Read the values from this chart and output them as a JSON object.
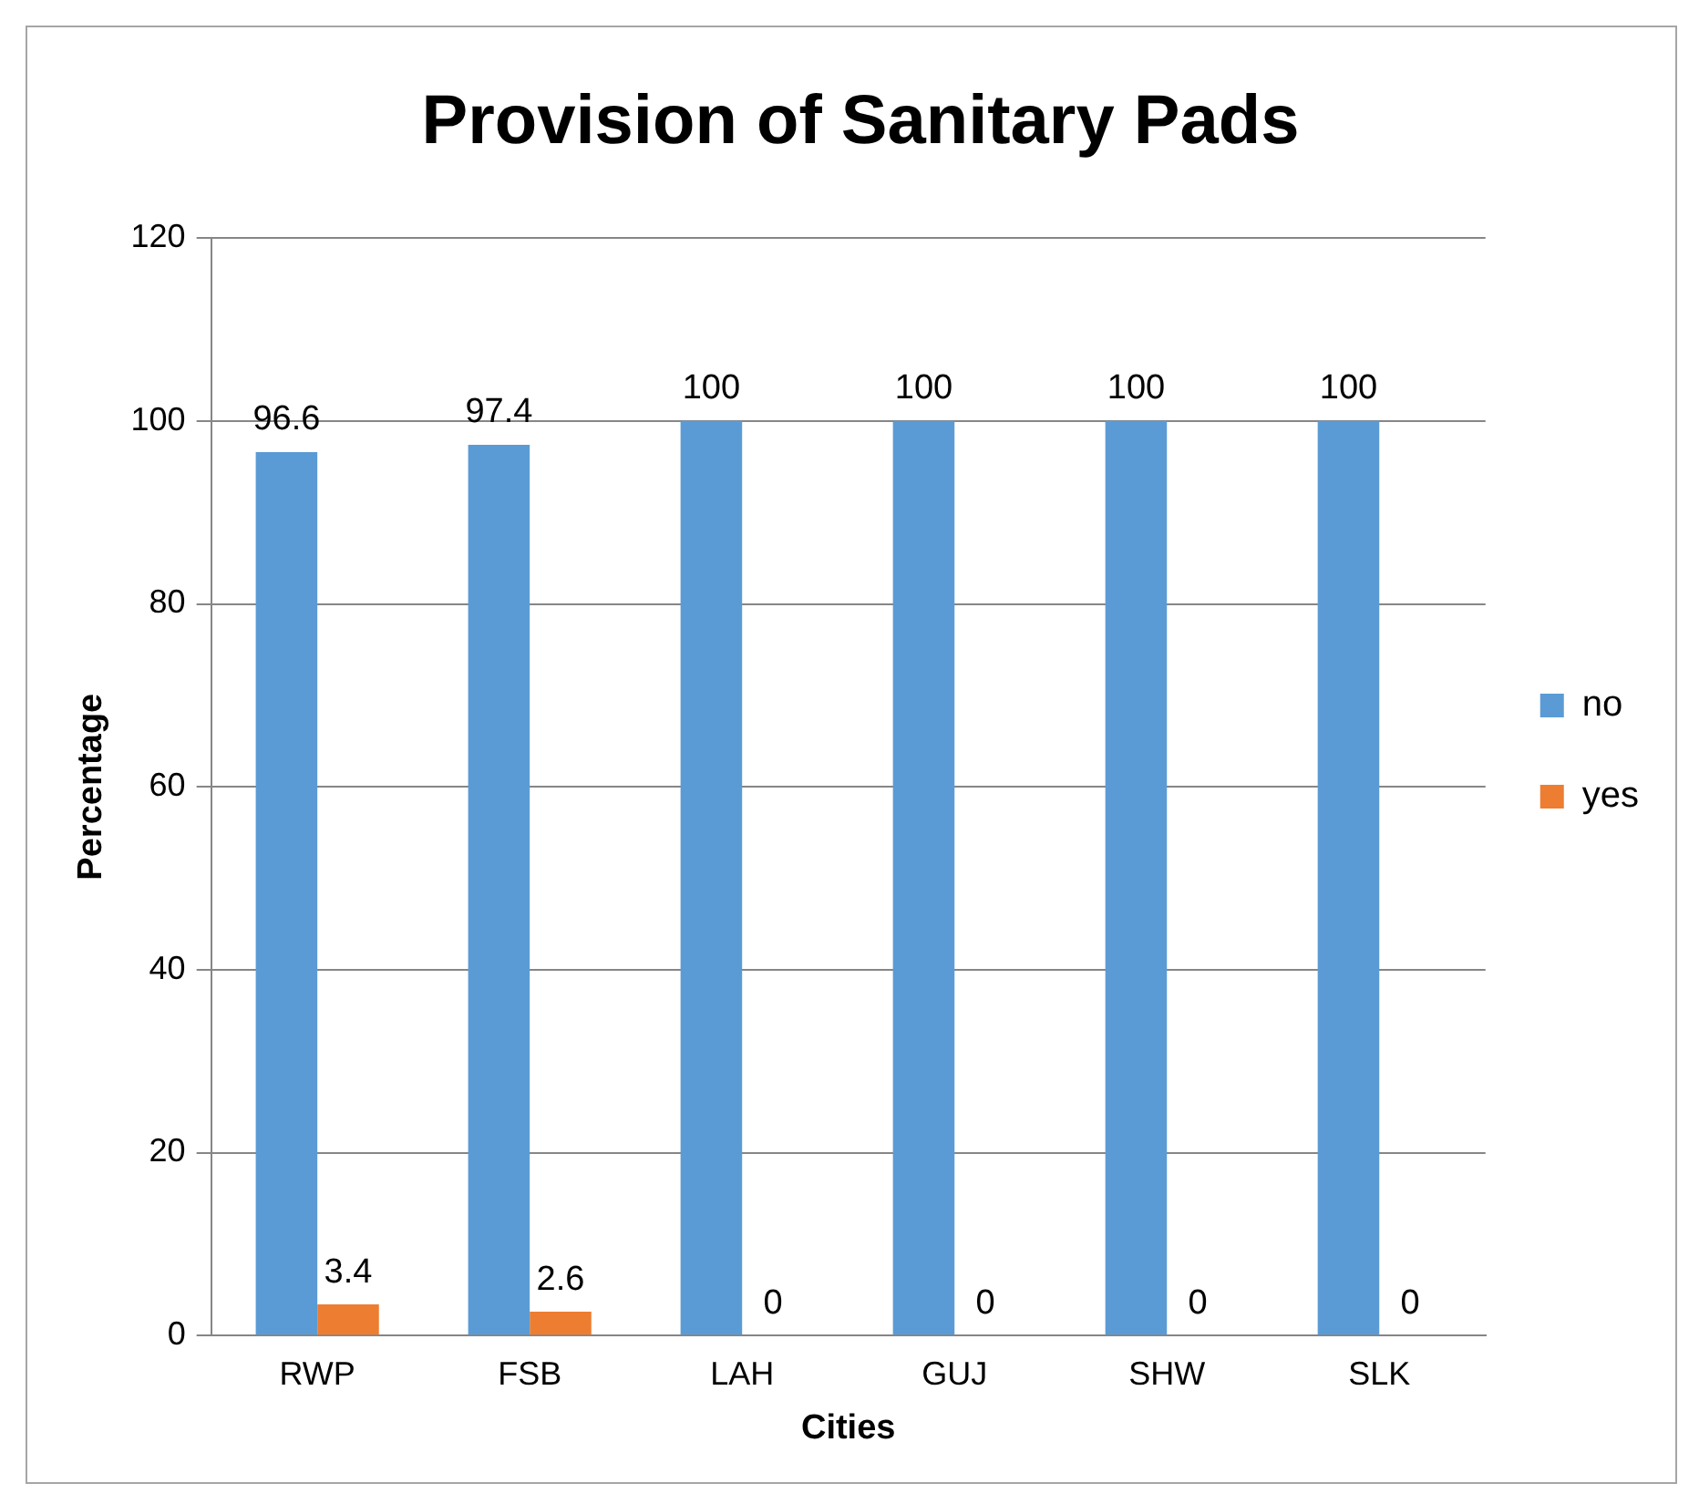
{
  "chart_data": {
    "type": "bar",
    "title": "Provision of Sanitary Pads",
    "xlabel": "Cities",
    "ylabel": "Percentage",
    "categories": [
      "RWP",
      "FSB",
      "LAH",
      "GUJ",
      "SHW",
      "SLK"
    ],
    "series": [
      {
        "name": "no",
        "color": "#5b9bd5",
        "values": [
          96.6,
          97.4,
          100,
          100,
          100,
          100
        ]
      },
      {
        "name": "yes",
        "color": "#ed7d31",
        "values": [
          3.4,
          2.6,
          0,
          0,
          0,
          0
        ]
      }
    ],
    "ylim": [
      0,
      120
    ],
    "yticks": [
      0,
      20,
      40,
      60,
      80,
      100,
      120
    ],
    "grid": "y",
    "legend": "right",
    "data_labels": true
  }
}
